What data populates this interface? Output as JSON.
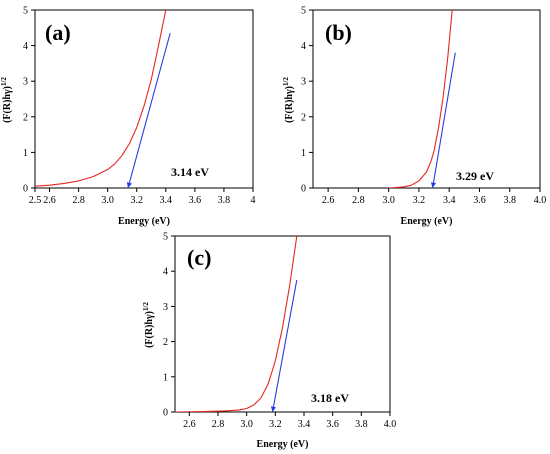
{
  "chart_data": [
    {
      "type": "line",
      "panel_label": "(a)",
      "xlabel": "Energy (eV)",
      "ylabel": "(F(R)hγ)1/2",
      "ylabel_main": "(F(R)hγ)",
      "ylabel_sup": "1/2",
      "xlim": [
        2.5,
        4.0
      ],
      "ylim": [
        0,
        5
      ],
      "xticks": [
        2.5,
        2.6,
        2.8,
        3.0,
        3.2,
        3.4,
        3.6,
        3.8,
        4.0
      ],
      "xtick_labels": [
        "2.5",
        "2.6",
        "2.8",
        "3.0",
        "3.2",
        "3.4",
        "3.6",
        "3.8",
        "4"
      ],
      "yticks": [
        0,
        1,
        2,
        3,
        4,
        5
      ],
      "ytick_labels": [
        "0",
        "1",
        "2",
        "3",
        "4",
        "5"
      ],
      "annotation": "3.14 eV",
      "band_gap_ev": 3.14,
      "series": [
        {
          "color": "#e8261f",
          "x": [
            2.5,
            2.6,
            2.7,
            2.8,
            2.9,
            3.0,
            3.05,
            3.1,
            3.15,
            3.2,
            3.25,
            3.3,
            3.35,
            3.4
          ],
          "y": [
            0.05,
            0.08,
            0.13,
            0.2,
            0.32,
            0.52,
            0.68,
            0.92,
            1.25,
            1.7,
            2.3,
            3.05,
            4.0,
            5.0
          ]
        },
        {
          "color": "#2a3de0",
          "x": [
            3.14,
            3.43
          ],
          "y": [
            0.0,
            4.35
          ]
        }
      ]
    },
    {
      "type": "line",
      "panel_label": "(b)",
      "xlabel": "Energy (eV)",
      "ylabel": "(F(R)hγ)1/2",
      "ylabel_main": "(F(R)hγ)",
      "ylabel_sup": "1/2",
      "xlim": [
        2.5,
        4.0
      ],
      "ylim": [
        0,
        5
      ],
      "xticks": [
        2.6,
        2.8,
        3.0,
        3.2,
        3.4,
        3.6,
        3.8,
        4.0
      ],
      "xtick_labels": [
        "2.6",
        "2.8",
        "3.0",
        "3.2",
        "3.4",
        "3.6",
        "3.8",
        "4.0"
      ],
      "yticks": [
        0,
        1,
        2,
        3,
        4,
        5
      ],
      "ytick_labels": [
        "0",
        "1",
        "2",
        "3",
        "4",
        "5"
      ],
      "annotation": "3.29 eV",
      "band_gap_ev": 3.29,
      "series": [
        {
          "color": "#e8261f",
          "x": [
            3.0,
            3.1,
            3.15,
            3.2,
            3.25,
            3.28,
            3.3,
            3.33,
            3.36,
            3.39,
            3.42
          ],
          "y": [
            0.0,
            0.03,
            0.08,
            0.2,
            0.45,
            0.75,
            1.05,
            1.7,
            2.55,
            3.65,
            5.0
          ]
        },
        {
          "color": "#2a3de0",
          "x": [
            3.29,
            3.44
          ],
          "y": [
            0.0,
            3.8
          ]
        }
      ]
    },
    {
      "type": "line",
      "panel_label": "(c)",
      "xlabel": "Energy (eV)",
      "ylabel": "(F(R)hγ)1/2",
      "ylabel_main": "(F(R)hγ)",
      "ylabel_sup": "1/2",
      "xlim": [
        2.5,
        4.0
      ],
      "ylim": [
        0,
        5
      ],
      "xticks": [
        2.6,
        2.8,
        3.0,
        3.2,
        3.4,
        3.6,
        3.8,
        4.0
      ],
      "xtick_labels": [
        "2.6",
        "2.8",
        "3.0",
        "3.2",
        "3.4",
        "3.6",
        "3.8",
        "4.0"
      ],
      "yticks": [
        0,
        1,
        2,
        3,
        4,
        5
      ],
      "ytick_labels": [
        "0",
        "1",
        "2",
        "3",
        "4",
        "5"
      ],
      "annotation": "3.18 eV",
      "band_gap_ev": 3.18,
      "series": [
        {
          "color": "#e8261f",
          "x": [
            2.5,
            2.7,
            2.85,
            2.95,
            3.0,
            3.05,
            3.1,
            3.15,
            3.2,
            3.25,
            3.3,
            3.35
          ],
          "y": [
            0.0,
            0.01,
            0.03,
            0.06,
            0.1,
            0.2,
            0.4,
            0.8,
            1.45,
            2.4,
            3.6,
            5.0
          ]
        },
        {
          "color": "#2a3de0",
          "x": [
            3.18,
            3.35
          ],
          "y": [
            0.0,
            3.75
          ]
        }
      ]
    }
  ]
}
